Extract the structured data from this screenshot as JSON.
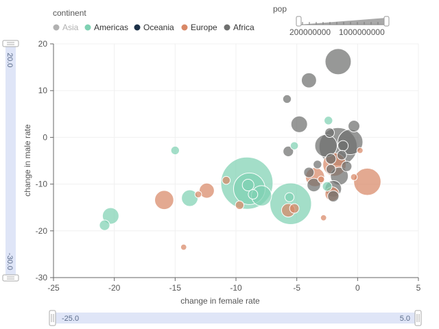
{
  "legend": {
    "title": "continent",
    "items": [
      {
        "label": "Asia",
        "color": "#9e9e9e",
        "active": false
      },
      {
        "label": "Americas",
        "color": "#7fd1b3",
        "active": true
      },
      {
        "label": "Oceania",
        "color": "#1c3148",
        "active": true
      },
      {
        "label": "Europe",
        "color": "#d88867",
        "active": true
      },
      {
        "label": "Africa",
        "color": "#6f706f",
        "active": true
      }
    ]
  },
  "size_legend": {
    "title": "pop",
    "tick_labels": [
      "200000000",
      "1000000000"
    ]
  },
  "y_slider": {
    "top_label": "20.0",
    "bottom_label": "-30.0"
  },
  "x_slider": {
    "left_label": "-25.0",
    "right_label": "5.0"
  },
  "chart_data": {
    "type": "scatter",
    "xlabel": "change in female rate",
    "ylabel": "change in male rate",
    "xlim": [
      -25,
      5
    ],
    "ylim": [
      -30,
      20
    ],
    "xticks": [
      -25,
      -20,
      -15,
      -10,
      -5,
      0,
      5
    ],
    "yticks": [
      -30,
      -20,
      -10,
      0,
      10,
      20
    ],
    "grid": true,
    "size_field": "pop",
    "series": [
      {
        "name": "Americas",
        "color": "#7fd1b3",
        "points": [
          {
            "x": -9.1,
            "y": -9.8,
            "pop": 300000000
          },
          {
            "x": -5.5,
            "y": -14.2,
            "pop": 190000000
          },
          {
            "x": -8.9,
            "y": -11.0,
            "pop": 110000000
          },
          {
            "x": -7.9,
            "y": -12.5,
            "pop": 45000000
          },
          {
            "x": -13.8,
            "y": -13.0,
            "pop": 30000000
          },
          {
            "x": -20.3,
            "y": -16.8,
            "pop": 30000000
          },
          {
            "x": -20.8,
            "y": -18.8,
            "pop": 12000000
          },
          {
            "x": -15.0,
            "y": -2.8,
            "pop": 8000000
          },
          {
            "x": -5.2,
            "y": -1.8,
            "pop": 7000000
          },
          {
            "x": -2.4,
            "y": 3.6,
            "pop": 8000000
          },
          {
            "x": -5.6,
            "y": -12.8,
            "pop": 9000000
          },
          {
            "x": -2.5,
            "y": -10.5,
            "pop": 10000000
          },
          {
            "x": -9.0,
            "y": -10.2,
            "pop": 15000000
          },
          {
            "x": -8.6,
            "y": -12.2,
            "pop": 10000000
          }
        ]
      },
      {
        "name": "Europe",
        "color": "#d88867",
        "points": [
          {
            "x": 0.8,
            "y": -9.5,
            "pop": 82000000
          },
          {
            "x": -15.9,
            "y": -13.4,
            "pop": 40000000
          },
          {
            "x": -12.4,
            "y": -11.4,
            "pop": 25000000
          },
          {
            "x": -3.5,
            "y": -8.5,
            "pop": 40000000
          },
          {
            "x": -1.9,
            "y": -5.8,
            "pop": 60000000
          },
          {
            "x": -5.7,
            "y": -15.6,
            "pop": 20000000
          },
          {
            "x": -2.1,
            "y": -12.1,
            "pop": 22000000
          },
          {
            "x": -5.2,
            "y": -15.2,
            "pop": 10000000
          },
          {
            "x": -9.7,
            "y": -14.5,
            "pop": 8000000
          },
          {
            "x": -10.8,
            "y": -9.2,
            "pop": 7000000
          },
          {
            "x": -13.1,
            "y": -12.2,
            "pop": 5000000
          },
          {
            "x": -14.3,
            "y": -23.5,
            "pop": 4000000
          },
          {
            "x": -2.8,
            "y": -17.2,
            "pop": 4000000
          },
          {
            "x": -0.3,
            "y": -8.5,
            "pop": 5000000
          },
          {
            "x": 0.2,
            "y": -2.8,
            "pop": 4000000
          },
          {
            "x": -3.0,
            "y": -9.0,
            "pop": 5000000
          }
        ]
      },
      {
        "name": "Africa",
        "color": "#6f706f",
        "points": [
          {
            "x": -1.6,
            "y": 16.2,
            "pop": 75000000
          },
          {
            "x": -4.0,
            "y": 12.2,
            "pop": 25000000
          },
          {
            "x": -1.6,
            "y": -2.0,
            "pop": 160000000
          },
          {
            "x": -0.6,
            "y": -1.0,
            "pop": 70000000
          },
          {
            "x": -2.6,
            "y": -1.8,
            "pop": 55000000
          },
          {
            "x": -4.8,
            "y": 2.8,
            "pop": 30000000
          },
          {
            "x": -0.3,
            "y": 2.4,
            "pop": 15000000
          },
          {
            "x": -5.8,
            "y": 8.2,
            "pop": 8000000
          },
          {
            "x": -5.7,
            "y": -3.0,
            "pop": 12000000
          },
          {
            "x": -2.3,
            "y": 1.0,
            "pop": 10000000
          },
          {
            "x": -1.2,
            "y": -1.8,
            "pop": 12000000
          },
          {
            "x": -1.3,
            "y": -3.8,
            "pop": 10000000
          },
          {
            "x": -2.2,
            "y": -4.6,
            "pop": 12000000
          },
          {
            "x": -4.0,
            "y": -7.5,
            "pop": 12000000
          },
          {
            "x": -3.6,
            "y": -10.2,
            "pop": 20000000
          },
          {
            "x": -1.5,
            "y": -8.3,
            "pop": 35000000
          },
          {
            "x": -2.0,
            "y": -11.0,
            "pop": 30000000
          },
          {
            "x": -2.0,
            "y": -12.6,
            "pop": 14000000
          },
          {
            "x": -2.2,
            "y": -6.8,
            "pop": 10000000
          },
          {
            "x": -0.9,
            "y": -6.2,
            "pop": 12000000
          },
          {
            "x": -3.3,
            "y": -5.8,
            "pop": 8000000
          }
        ]
      }
    ]
  }
}
